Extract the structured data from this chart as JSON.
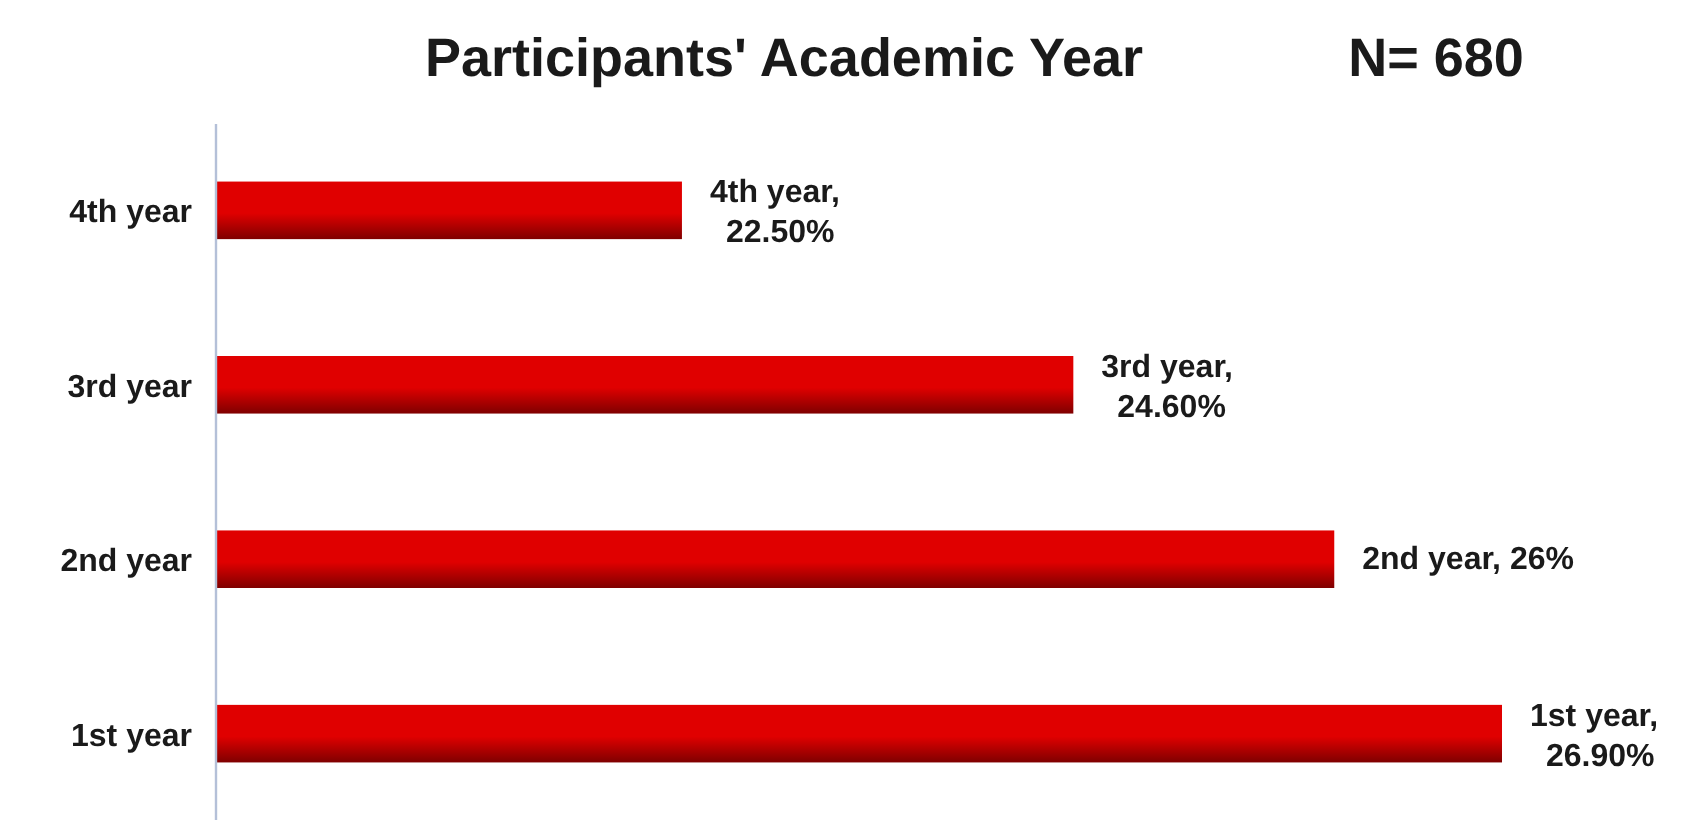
{
  "chart_data": {
    "type": "bar",
    "orientation": "horizontal",
    "title": "Participants' Academic Year",
    "annotations": [
      "N= 680"
    ],
    "categories": [
      "4th year",
      "3rd year",
      "2nd year",
      "1st year"
    ],
    "values": [
      22.5,
      24.6,
      26,
      26.9
    ],
    "value_labels": [
      "4th year, 22.50%",
      "3rd year, 24.60%",
      "2nd year, 26%",
      "1st year, 26.90%"
    ],
    "color": "#e00000",
    "xlim": [
      20,
      26.9
    ],
    "tick_labels": "y"
  }
}
